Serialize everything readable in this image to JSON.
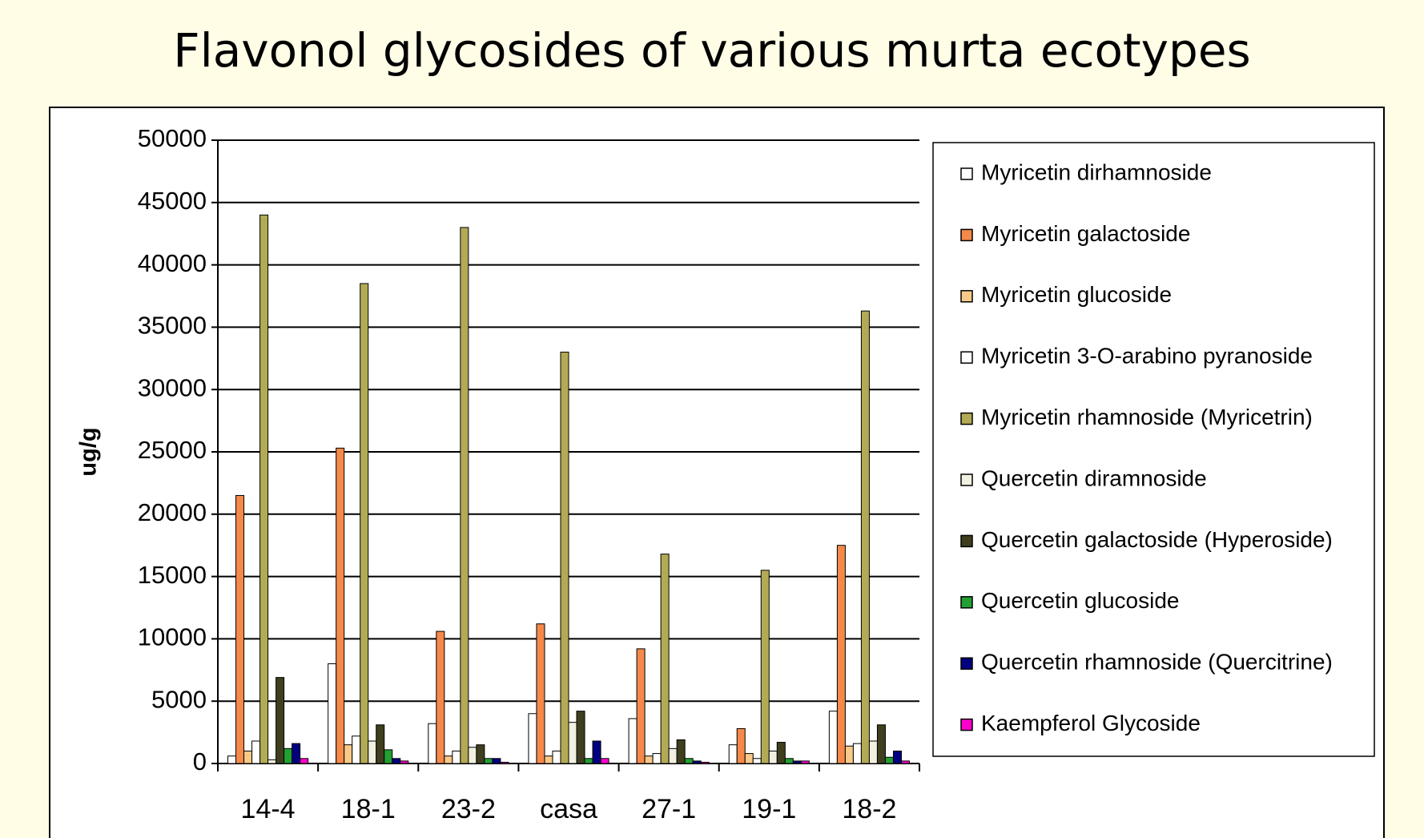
{
  "chart_data": {
    "type": "bar",
    "title": "Flavonol glycosides of various murta ecotypes",
    "y_label": "ug/g",
    "categories": [
      "14-4",
      "18-1",
      "23-2",
      "casa",
      "27-1",
      "19-1",
      "18-2"
    ],
    "series": [
      {
        "name": "Myricetin dirhamnoside",
        "color": "#ffffff",
        "values": [
          600,
          8000,
          3200,
          4000,
          3600,
          1500,
          4200
        ]
      },
      {
        "name": "Myricetin galactoside",
        "color": "#f4894a",
        "values": [
          21500,
          25300,
          10600,
          11200,
          9200,
          2800,
          17500
        ]
      },
      {
        "name": "Myricetin glucoside",
        "color": "#f9c98a",
        "values": [
          1000,
          1500,
          600,
          600,
          600,
          800,
          1400
        ]
      },
      {
        "name": "Myricetin 3-O-arabino pyranoside",
        "color": "#ffffff",
        "values": [
          1800,
          2200,
          1000,
          1000,
          800,
          400,
          1600
        ]
      },
      {
        "name": "Myricetin rhamnoside (Myricetrin)",
        "color": "#b3aa55",
        "values": [
          44000,
          38500,
          43000,
          33000,
          16800,
          15500,
          36300
        ]
      },
      {
        "name": "Quercetin diramnoside",
        "color": "#f2f0e0",
        "values": [
          300,
          1800,
          1300,
          3300,
          1200,
          1000,
          1800
        ]
      },
      {
        "name": "Quercetin galactoside (Hyperoside)",
        "color": "#3f3f1f",
        "values": [
          6900,
          3100,
          1500,
          4200,
          1900,
          1700,
          3100
        ]
      },
      {
        "name": "Quercetin glucoside",
        "color": "#22a032",
        "values": [
          1200,
          1100,
          400,
          400,
          400,
          400,
          500
        ]
      },
      {
        "name": "Quercetin rhamnoside (Quercitrine)",
        "color": "#000080",
        "values": [
          1600,
          400,
          400,
          1800,
          200,
          200,
          1000
        ]
      },
      {
        "name": "Kaempferol Glycoside",
        "color": "#ff00cc",
        "values": [
          400,
          200,
          100,
          400,
          100,
          200,
          200
        ]
      }
    ],
    "ylim": [
      0,
      50000
    ],
    "yticks": [
      0,
      5000,
      10000,
      15000,
      20000,
      25000,
      30000,
      35000,
      40000,
      45000,
      50000
    ],
    "grid": true
  }
}
